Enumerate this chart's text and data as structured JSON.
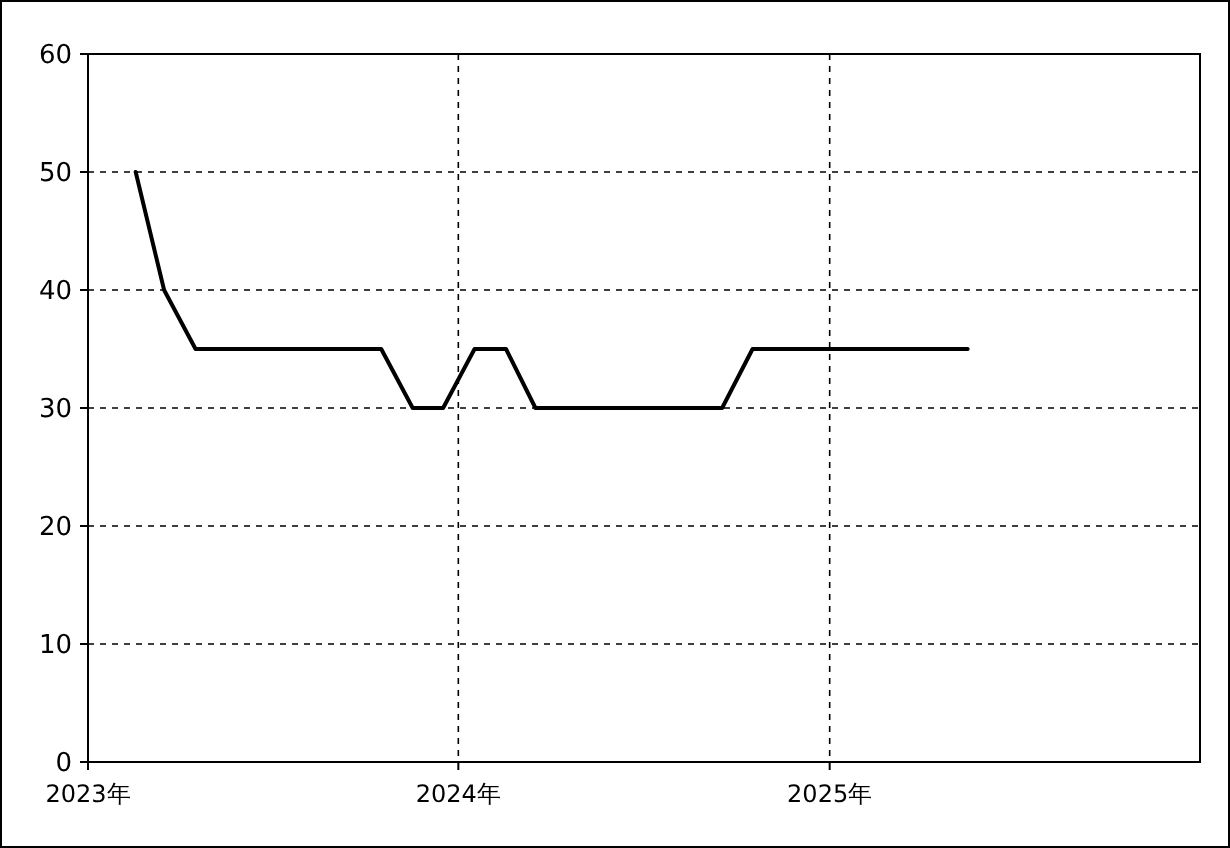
{
  "chart_data": {
    "type": "line",
    "x": [
      "2023-02-17",
      "2023-03-17",
      "2023-04-17",
      "2023-05-17",
      "2023-06-17",
      "2023-07-17",
      "2023-08-17",
      "2023-09-17",
      "2023-10-17",
      "2023-11-17",
      "2023-12-17",
      "2024-01-17",
      "2024-02-17",
      "2024-03-17",
      "2024-04-17",
      "2024-05-17",
      "2024-06-17",
      "2024-07-17",
      "2024-08-17",
      "2024-09-17",
      "2024-10-17",
      "2024-11-17",
      "2024-12-17",
      "2025-01-17",
      "2025-02-17",
      "2025-03-17",
      "2025-04-17",
      "2025-05-17"
    ],
    "series": [
      {
        "color": "#000000",
        "values": [
          50,
          40,
          35,
          35,
          35,
          35,
          35,
          35,
          35,
          30,
          30,
          35,
          35,
          30,
          30,
          30,
          30,
          30,
          30,
          30,
          35,
          35,
          35,
          35,
          35,
          35,
          35,
          35
        ]
      }
    ],
    "xlim": [
      "2023-01-01",
      "2026-01-01"
    ],
    "xticks": [
      {
        "value": "2023-01-01",
        "label": "2023年"
      },
      {
        "value": "2024-01-01",
        "label": "2024年"
      },
      {
        "value": "2025-01-01",
        "label": "2025年"
      }
    ],
    "ylim": [
      0,
      60
    ],
    "yticks": [
      0,
      10,
      20,
      30,
      40,
      50,
      60
    ],
    "grid": true,
    "marker": "none",
    "line_style": "solid"
  }
}
